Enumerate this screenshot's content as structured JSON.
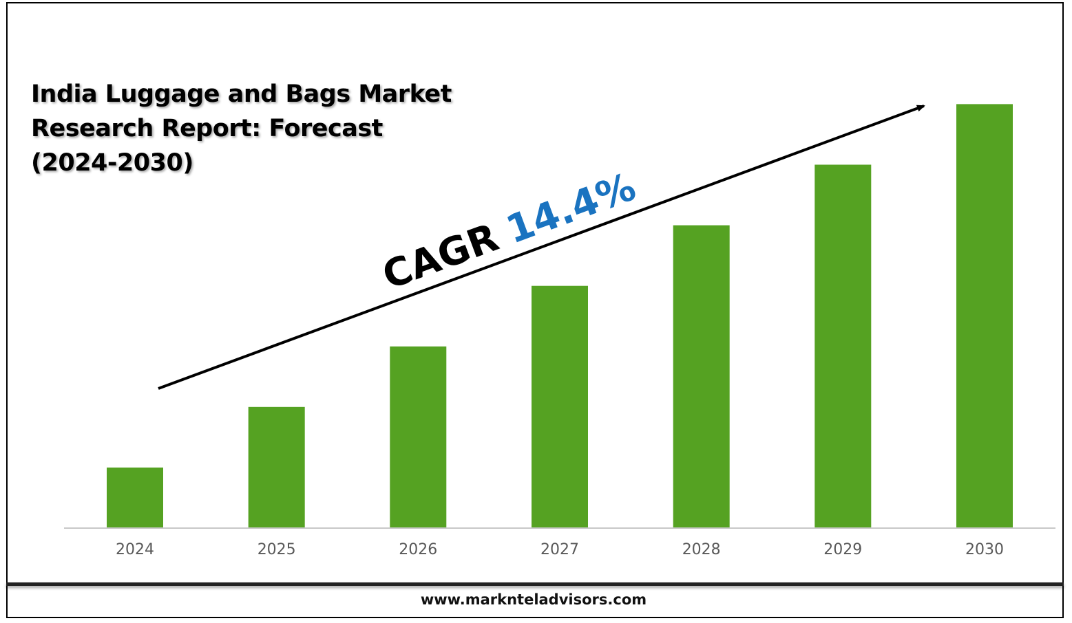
{
  "chart_data": {
    "type": "bar",
    "title": "India Luggage and Bags Market Research Report: Forecast (2024-2030)",
    "categories": [
      "2024",
      "2025",
      "2026",
      "2027",
      "2028",
      "2029",
      "2030"
    ],
    "values": [
      1.0,
      2.0,
      3.0,
      4.0,
      5.0,
      6.0,
      7.0
    ],
    "ylim": [
      0,
      7.3
    ],
    "bar_color": "#55a222",
    "grid": false,
    "annotation": {
      "prefix": "CAGR",
      "value": "14.4%",
      "prefix_color": "#000000",
      "value_color": "#1a73c0"
    }
  },
  "footer": {
    "website": "www.marknteladvisors.com"
  }
}
